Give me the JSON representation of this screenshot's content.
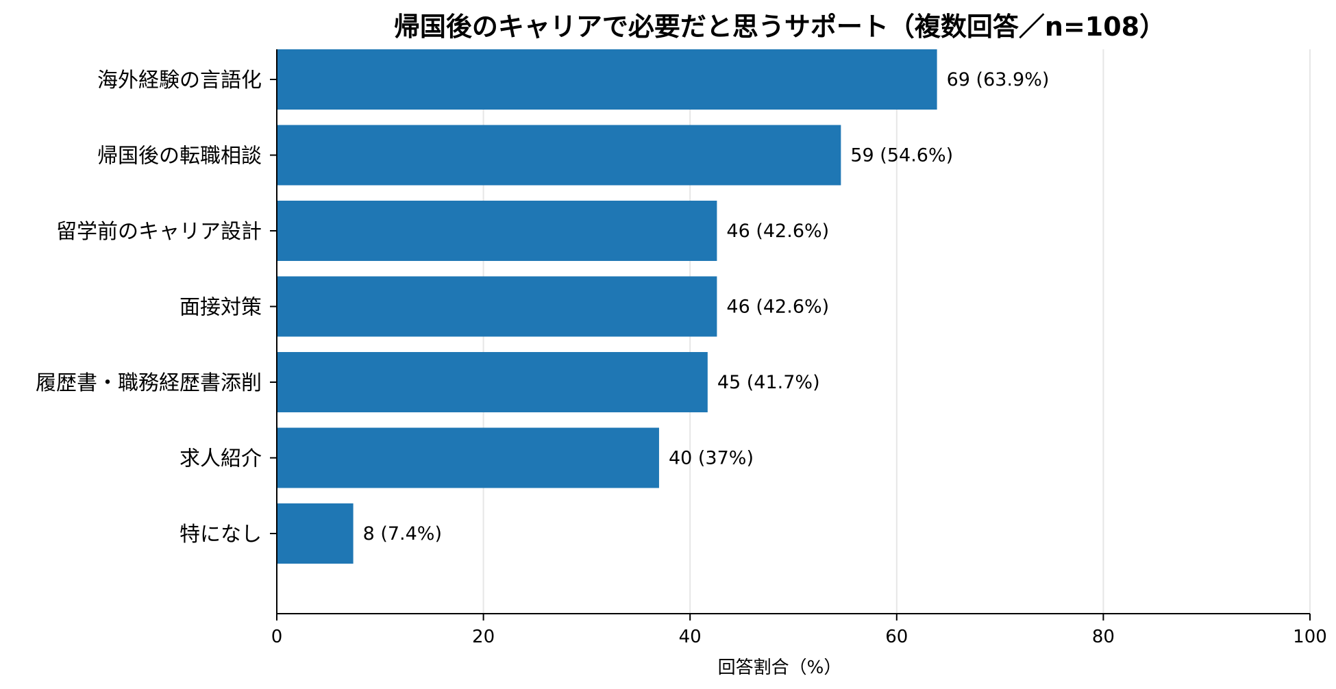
{
  "chart_data": {
    "type": "bar",
    "orientation": "horizontal",
    "title": "帰国後のキャリアで必要だと思うサポート（複数回答／n=108）",
    "xlabel": "回答割合（%）",
    "ylabel": "",
    "xlim": [
      0,
      100
    ],
    "xticks": [
      0,
      20,
      40,
      60,
      80,
      100
    ],
    "grid": "vertical",
    "categories": [
      "海外経験の言語化",
      "帰国後の転職相談",
      "留学前のキャリア設計",
      "面接対策",
      "履歴書・職務経歴書添削",
      "求人紹介",
      "特になし"
    ],
    "values": [
      63.9,
      54.6,
      42.6,
      42.6,
      41.7,
      37.0,
      7.4
    ],
    "counts": [
      69,
      59,
      46,
      46,
      45,
      40,
      8
    ],
    "data_labels": [
      "69 (63.9%)",
      "59 (54.6%)",
      "46 (42.6%)",
      "46 (42.6%)",
      "45 (41.7%)",
      "40 (37%)",
      "8 (7.4%)"
    ],
    "bar_color": "#1f77b4",
    "grid_color": "#e6e6e6",
    "axis_color": "#000000"
  }
}
